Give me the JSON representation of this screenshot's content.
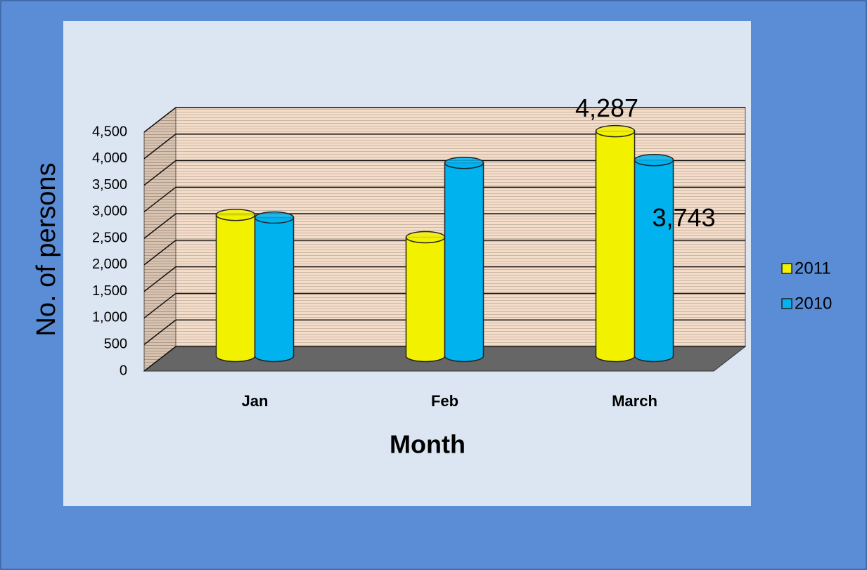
{
  "chart_data": {
    "type": "bar3d",
    "y_label": "No. of persons",
    "x_label": "Month",
    "categories": [
      "Jan",
      "Feb",
      "March"
    ],
    "series": [
      {
        "name": "2011",
        "color": "#f2f200",
        "values": [
          2710,
          2290,
          4287
        ],
        "value_labels": [
          null,
          null,
          "4,287"
        ]
      },
      {
        "name": "2010",
        "color": "#00b2ee",
        "values": [
          2660,
          3690,
          3743
        ],
        "value_labels": [
          null,
          null,
          "3,743"
        ]
      }
    ],
    "ylim": [
      0,
      4500
    ],
    "yticks": [
      0,
      500,
      {
        "value": 1000,
        "label": "1,000"
      },
      {
        "value": 1500,
        "label": "1,500"
      },
      {
        "value": 2000,
        "label": "2,000"
      },
      {
        "value": 2500,
        "label": "2,500"
      },
      {
        "value": 3000,
        "label": "3,000"
      },
      {
        "value": 3500,
        "label": "3,500"
      },
      {
        "value": 4000,
        "label": "4,000"
      },
      {
        "value": 4500,
        "label": "4,500"
      }
    ],
    "grid": true,
    "legend": "right"
  }
}
